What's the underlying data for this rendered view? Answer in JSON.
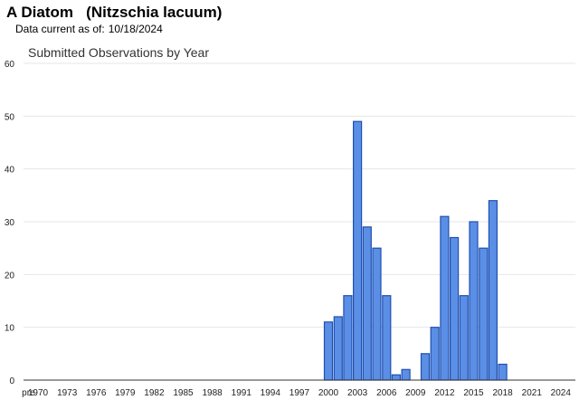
{
  "header": {
    "title": "A Diatom   (Nitzschia lacuum)",
    "date_label": "Data current as of:",
    "date_value": "10/18/2024"
  },
  "colors": {
    "bar_fill": "#5b8fe6",
    "bar_stroke": "#1f4fb0"
  },
  "chart_data": {
    "type": "bar",
    "title": "Submitted Observations by Year",
    "xlabel": "",
    "ylabel": "",
    "ylim": [
      0,
      60
    ],
    "yticks": [
      0,
      10,
      20,
      30,
      40,
      50,
      60
    ],
    "grid": true,
    "categories": [
      "pre",
      "1970",
      "1971",
      "1972",
      "1973",
      "1974",
      "1975",
      "1976",
      "1977",
      "1978",
      "1979",
      "1980",
      "1981",
      "1982",
      "1983",
      "1984",
      "1985",
      "1986",
      "1987",
      "1988",
      "1989",
      "1990",
      "1991",
      "1992",
      "1993",
      "1994",
      "1995",
      "1996",
      "1997",
      "1998",
      "1999",
      "2000",
      "2001",
      "2002",
      "2003",
      "2004",
      "2005",
      "2006",
      "2007",
      "2008",
      "2009",
      "2010",
      "2011",
      "2012",
      "2013",
      "2014",
      "2015",
      "2016",
      "2017",
      "2018",
      "2019",
      "2020",
      "2021",
      "2022",
      "2023",
      "2024"
    ],
    "xtick_labels": [
      "pre",
      "1970",
      "1973",
      "1976",
      "1979",
      "1982",
      "1985",
      "1988",
      "1991",
      "1994",
      "1997",
      "2000",
      "2003",
      "2006",
      "2009",
      "2012",
      "2015",
      "2018",
      "2021",
      "2024"
    ],
    "values": [
      0,
      0,
      0,
      0,
      0,
      0,
      0,
      0,
      0,
      0,
      0,
      0,
      0,
      0,
      0,
      0,
      0,
      0,
      0,
      0,
      0,
      0,
      0,
      0,
      0,
      0,
      0,
      0,
      0,
      0,
      0,
      11,
      12,
      16,
      49,
      29,
      25,
      16,
      1,
      2,
      0,
      5,
      10,
      31,
      27,
      16,
      30,
      25,
      34,
      3,
      0,
      0,
      0,
      0,
      0,
      0
    ]
  }
}
